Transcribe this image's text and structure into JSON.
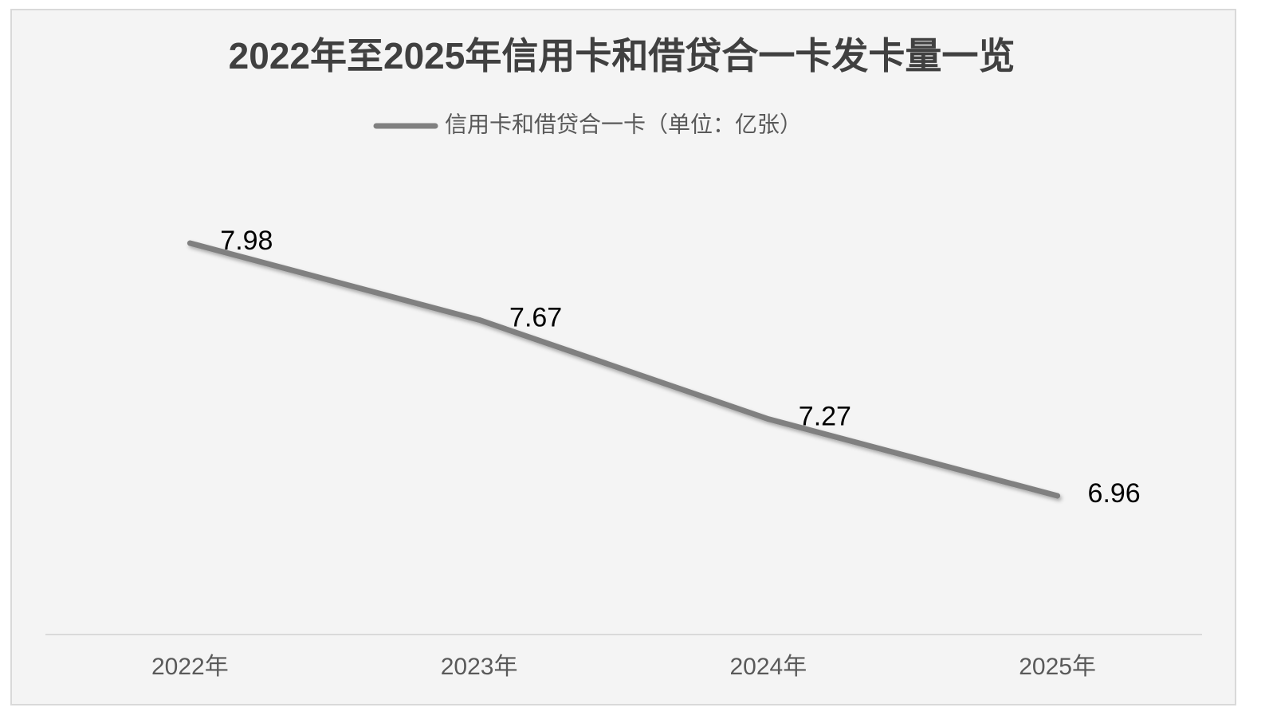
{
  "chart_data": {
    "type": "line",
    "title": "2022年至2025年信用卡和借贷合一卡发卡量一览",
    "categories": [
      "2022年",
      "2023年",
      "2024年",
      "2025年"
    ],
    "series": [
      {
        "name": "信用卡和借贷合一卡（单位：亿张）",
        "color": "#808080",
        "values": [
          7.98,
          7.67,
          7.27,
          6.96
        ]
      }
    ]
  }
}
